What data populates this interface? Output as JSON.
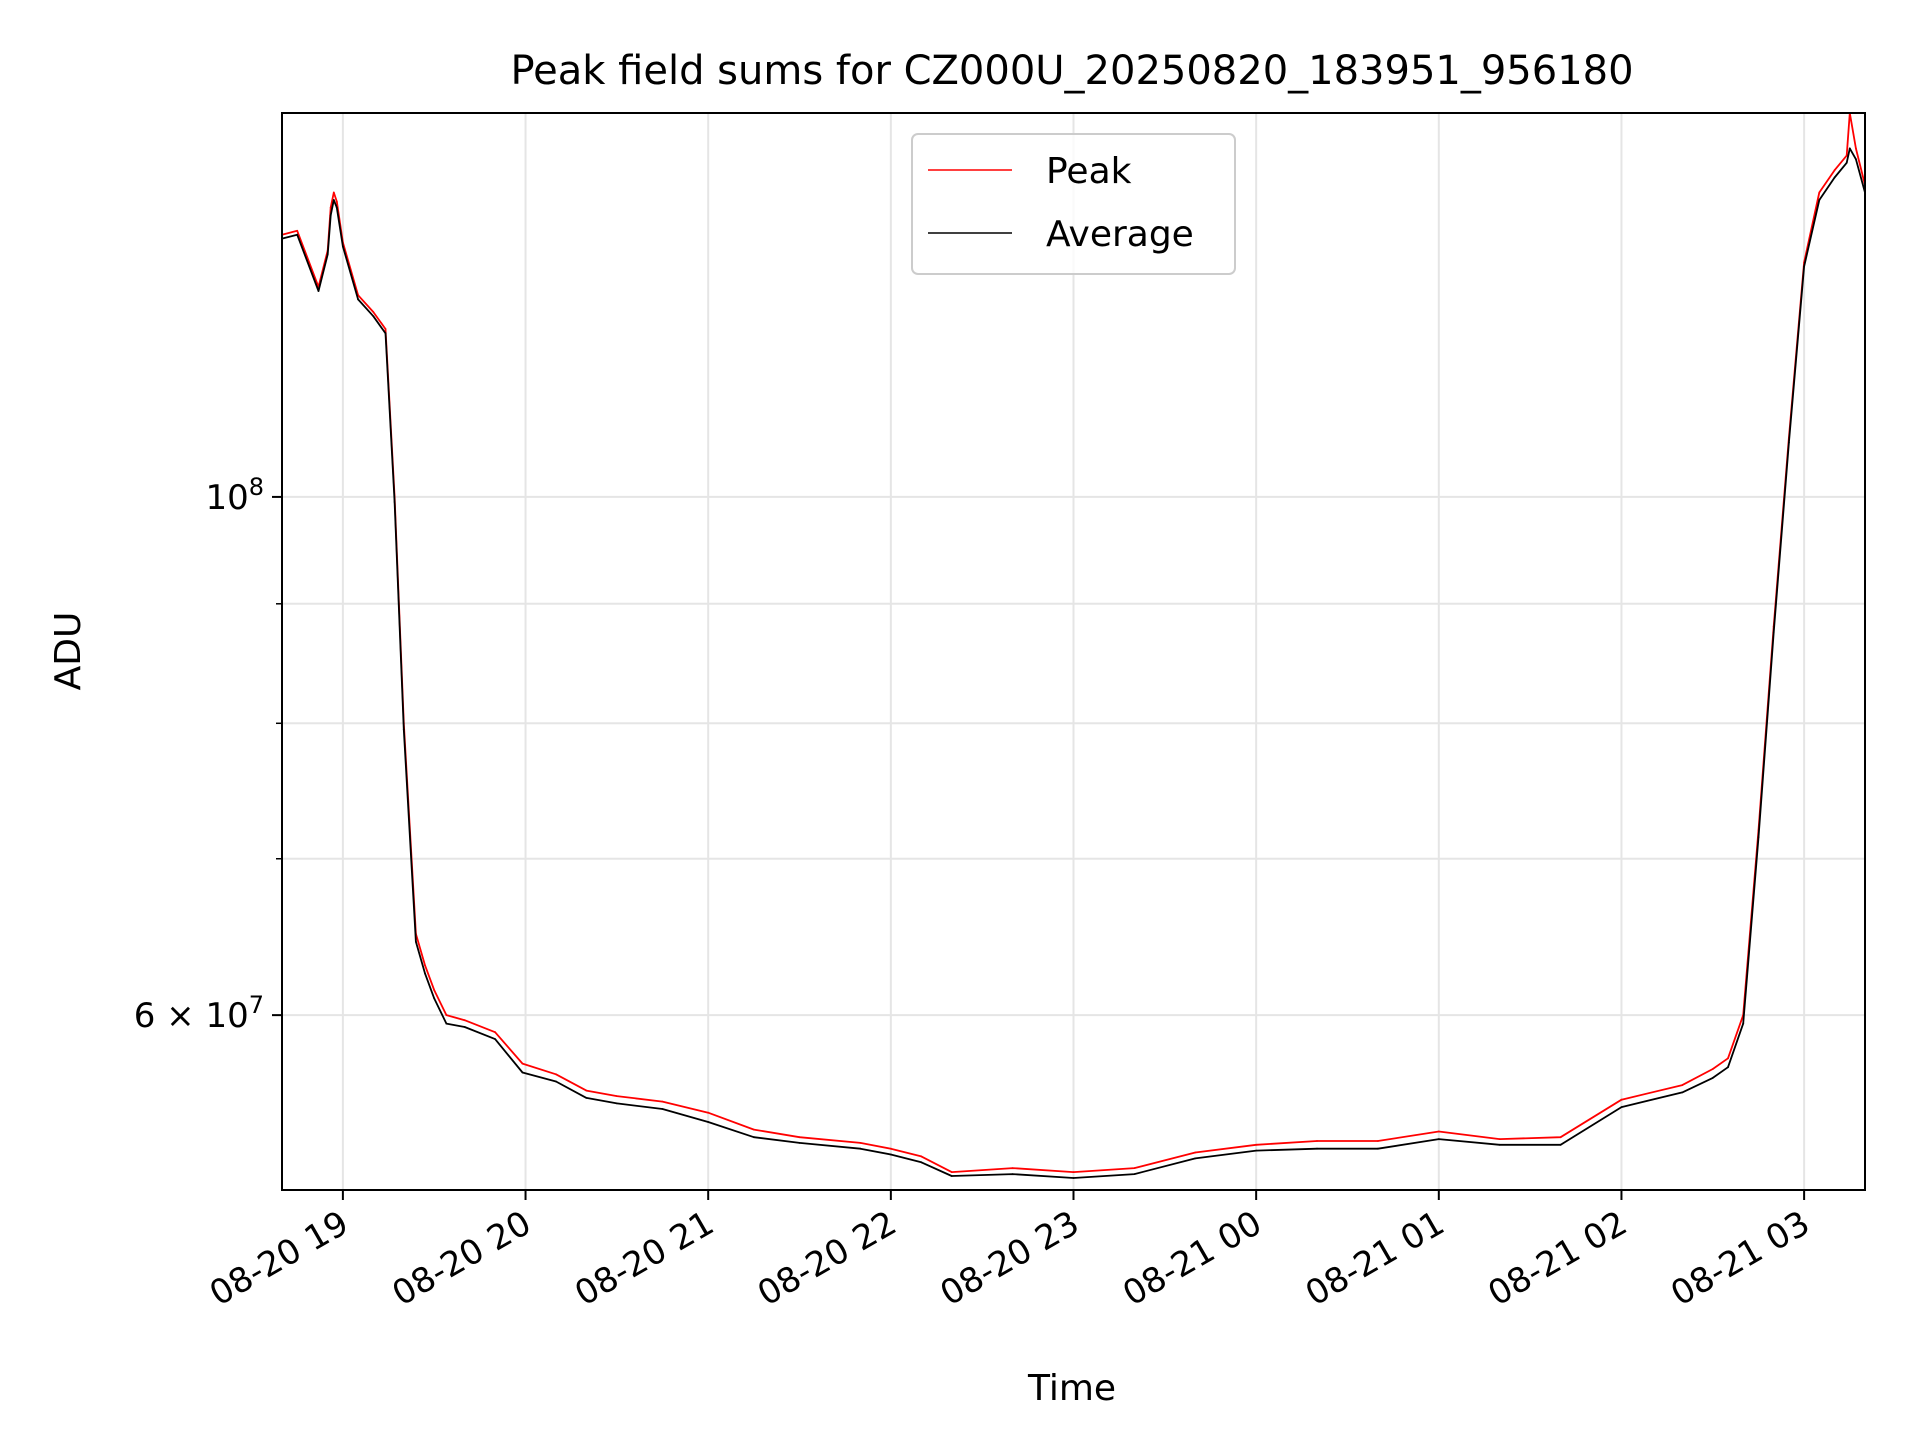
{
  "chart_data": {
    "type": "line",
    "title": "Peak field sums for CZ000U_20250820_183951_956180",
    "xlabel": "Time",
    "ylabel": "ADU",
    "yscale": "log",
    "xlim": [
      "2025-08-20 18:40",
      "2025-08-21 03:20"
    ],
    "ylim": [
      50500000,
      146000000
    ],
    "x_ticks": [
      {
        "value": "2025-08-20 19:00",
        "label": "08-20 19"
      },
      {
        "value": "2025-08-20 20:00",
        "label": "08-20 20"
      },
      {
        "value": "2025-08-20 21:00",
        "label": "08-20 21"
      },
      {
        "value": "2025-08-20 22:00",
        "label": "08-20 22"
      },
      {
        "value": "2025-08-20 23:00",
        "label": "08-20 23"
      },
      {
        "value": "2025-08-21 00:00",
        "label": "08-21 00"
      },
      {
        "value": "2025-08-21 01:00",
        "label": "08-21 01"
      },
      {
        "value": "2025-08-21 02:00",
        "label": "08-21 02"
      },
      {
        "value": "2025-08-21 03:00",
        "label": "08-21 03"
      }
    ],
    "y_major_ticks": [
      {
        "value": 60000000,
        "label": "6 × 10",
        "exp": "7"
      },
      {
        "value": 100000000,
        "label": "10",
        "exp": "8"
      }
    ],
    "y_minor_ticks": [
      70000000,
      80000000,
      90000000
    ],
    "grid": true,
    "legend": {
      "position": "upper center"
    },
    "series": [
      {
        "name": "Peak",
        "color": "#ff0000",
        "x": [
          "2025-08-20 18:40",
          "2025-08-20 18:45",
          "2025-08-20 18:52",
          "2025-08-20 18:55",
          "2025-08-20 18:56",
          "2025-08-20 18:57",
          "2025-08-20 18:58",
          "2025-08-20 19:00",
          "2025-08-20 19:05",
          "2025-08-20 19:10",
          "2025-08-20 19:14",
          "2025-08-20 19:17",
          "2025-08-20 19:20",
          "2025-08-20 19:24",
          "2025-08-20 19:27",
          "2025-08-20 19:30",
          "2025-08-20 19:34",
          "2025-08-20 19:40",
          "2025-08-20 19:50",
          "2025-08-20 19:59",
          "2025-08-20 20:10",
          "2025-08-20 20:20",
          "2025-08-20 20:30",
          "2025-08-20 20:45",
          "2025-08-20 21:00",
          "2025-08-20 21:15",
          "2025-08-20 21:30",
          "2025-08-20 21:50",
          "2025-08-20 22:00",
          "2025-08-20 22:10",
          "2025-08-20 22:20",
          "2025-08-20 22:40",
          "2025-08-20 23:00",
          "2025-08-20 23:20",
          "2025-08-20 23:40",
          "2025-08-21 00:00",
          "2025-08-21 00:20",
          "2025-08-21 00:40",
          "2025-08-21 01:00",
          "2025-08-21 01:20",
          "2025-08-21 01:40",
          "2025-08-21 02:00",
          "2025-08-21 02:20",
          "2025-08-21 02:30",
          "2025-08-21 02:35",
          "2025-08-21 02:40",
          "2025-08-21 02:45",
          "2025-08-21 02:50",
          "2025-08-21 02:55",
          "2025-08-21 03:00",
          "2025-08-21 03:05",
          "2025-08-21 03:10",
          "2025-08-21 03:14",
          "2025-08-21 03:15",
          "2025-08-21 03:17",
          "2025-08-21 03:20"
        ],
        "y": [
          129500000,
          130000000,
          123000000,
          127500000,
          133000000,
          135000000,
          133800000,
          128500000,
          122000000,
          120000000,
          118000000,
          100000000,
          80000000,
          65000000,
          63000000,
          61500000,
          60000000,
          59700000,
          59000000,
          57200000,
          56600000,
          55700000,
          55400000,
          55100000,
          54500000,
          53600000,
          53200000,
          52900000,
          52600000,
          52200000,
          51400000,
          51600000,
          51400000,
          51600000,
          52400000,
          52800000,
          53000000,
          53000000,
          53500000,
          53100000,
          53200000,
          55200000,
          56000000,
          56900000,
          57500000,
          60000000,
          72000000,
          88000000,
          106000000,
          126000000,
          135000000,
          138000000,
          140000000,
          146000000,
          141000000,
          136000000
        ]
      },
      {
        "name": "Average",
        "color": "#000000",
        "x": [
          "2025-08-20 18:40",
          "2025-08-20 18:45",
          "2025-08-20 18:52",
          "2025-08-20 18:55",
          "2025-08-20 18:56",
          "2025-08-20 18:57",
          "2025-08-20 18:58",
          "2025-08-20 19:00",
          "2025-08-20 19:05",
          "2025-08-20 19:10",
          "2025-08-20 19:14",
          "2025-08-20 19:17",
          "2025-08-20 19:20",
          "2025-08-20 19:24",
          "2025-08-20 19:27",
          "2025-08-20 19:30",
          "2025-08-20 19:34",
          "2025-08-20 19:40",
          "2025-08-20 19:50",
          "2025-08-20 19:59",
          "2025-08-20 20:10",
          "2025-08-20 20:20",
          "2025-08-20 20:30",
          "2025-08-20 20:45",
          "2025-08-20 21:00",
          "2025-08-20 21:15",
          "2025-08-20 21:30",
          "2025-08-20 21:50",
          "2025-08-20 22:00",
          "2025-08-20 22:10",
          "2025-08-20 22:20",
          "2025-08-20 22:40",
          "2025-08-20 23:00",
          "2025-08-20 23:20",
          "2025-08-20 23:40",
          "2025-08-21 00:00",
          "2025-08-21 00:20",
          "2025-08-21 00:40",
          "2025-08-21 01:00",
          "2025-08-21 01:20",
          "2025-08-21 01:40",
          "2025-08-21 02:00",
          "2025-08-21 02:20",
          "2025-08-21 02:30",
          "2025-08-21 02:35",
          "2025-08-21 02:40",
          "2025-08-21 02:45",
          "2025-08-21 02:50",
          "2025-08-21 02:55",
          "2025-08-21 03:00",
          "2025-08-21 03:05",
          "2025-08-21 03:10",
          "2025-08-21 03:14",
          "2025-08-21 03:15",
          "2025-08-21 03:17",
          "2025-08-21 03:20"
        ],
        "y": [
          129000000,
          129500000,
          122500000,
          127000000,
          132000000,
          134000000,
          133000000,
          128000000,
          121500000,
          119500000,
          117500000,
          99500000,
          79500000,
          64500000,
          62500000,
          61000000,
          59500000,
          59300000,
          58600000,
          56700000,
          56200000,
          55300000,
          55000000,
          54700000,
          54000000,
          53200000,
          52900000,
          52600000,
          52300000,
          51900000,
          51200000,
          51300000,
          51100000,
          51300000,
          52100000,
          52500000,
          52600000,
          52600000,
          53100000,
          52800000,
          52800000,
          54800000,
          55600000,
          56400000,
          57000000,
          59500000,
          71500000,
          87500000,
          105500000,
          125500000,
          134000000,
          137000000,
          139000000,
          141000000,
          139500000,
          135000000
        ]
      }
    ]
  }
}
